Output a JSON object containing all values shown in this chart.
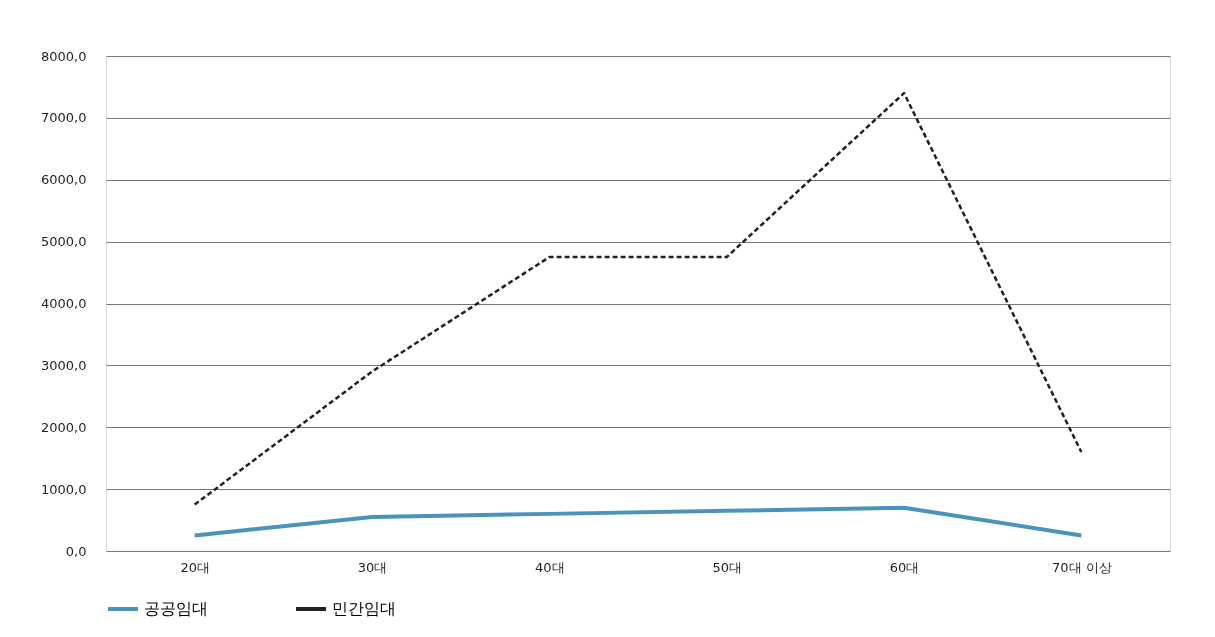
{
  "chart_data": {
    "type": "line",
    "categories": [
      "20대",
      "30대",
      "40대",
      "50대",
      "60대",
      "70대 이상"
    ],
    "series": [
      {
        "name": "공공임대",
        "color": "#4a94bb",
        "line_style": "solid",
        "values": [
          250,
          550,
          600,
          650,
          700,
          250
        ]
      },
      {
        "name": "민간임대",
        "color": "#231f20",
        "line_style": "dashed",
        "values": [
          750,
          2900,
          4750,
          4750,
          7400,
          1600
        ]
      }
    ],
    "ylim": [
      0,
      8000
    ],
    "yticks": [
      {
        "value": 0,
        "label": "0,0"
      },
      {
        "value": 1000,
        "label": "1000,0"
      },
      {
        "value": 2000,
        "label": "2000,0"
      },
      {
        "value": 3000,
        "label": "3000,0"
      },
      {
        "value": 4000,
        "label": "4000,0"
      },
      {
        "value": 5000,
        "label": "5000,0"
      },
      {
        "value": 6000,
        "label": "6000,0"
      },
      {
        "value": 7000,
        "label": "7000,0"
      },
      {
        "value": 8000,
        "label": "8000,0"
      }
    ],
    "grid": "y",
    "legend": "bottom"
  }
}
